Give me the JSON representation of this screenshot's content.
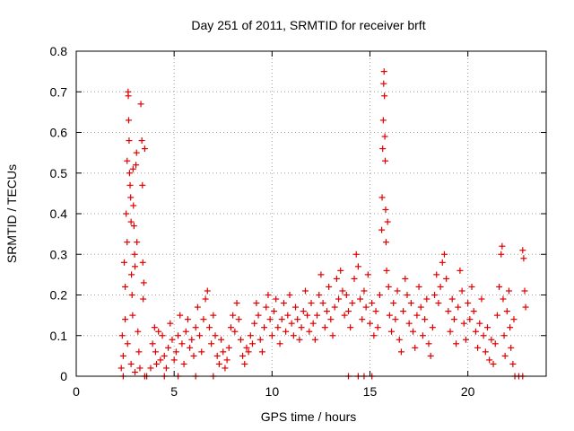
{
  "chart_data": {
    "type": "scatter",
    "title": "Day 251 of 2011, SRMTID for receiver brft",
    "xlabel": "GPS time / hours",
    "ylabel": "SRMTID / TECUs",
    "xlim": [
      0,
      24
    ],
    "ylim": [
      0,
      0.8
    ],
    "xticks": [
      0,
      5,
      10,
      15,
      20
    ],
    "xtick_labels": [
      "0",
      "5",
      "10",
      "15",
      "20"
    ],
    "yticks": [
      0,
      0.1,
      0.2,
      0.3,
      0.4,
      0.5,
      0.6,
      0.7,
      0.8
    ],
    "ytick_labels": [
      "0",
      "0.1",
      "0.2",
      "0.3",
      "0.4",
      "0.5",
      "0.6",
      "0.7",
      "0.8"
    ],
    "grid": true,
    "marker": "+",
    "color": "#e00000",
    "series": [
      {
        "name": "SRMTID",
        "points": [
          [
            2.3,
            0.02
          ],
          [
            2.35,
            0.1
          ],
          [
            2.4,
            0.05
          ],
          [
            2.45,
            0.28
          ],
          [
            2.5,
            0.22
          ],
          [
            2.5,
            0.14
          ],
          [
            2.55,
            0.4
          ],
          [
            2.6,
            0.53
          ],
          [
            2.6,
            0.33
          ],
          [
            2.62,
            0.08
          ],
          [
            2.65,
            0.7
          ],
          [
            2.66,
            0.69
          ],
          [
            2.68,
            0.63
          ],
          [
            2.7,
            0.58
          ],
          [
            2.72,
            0.5
          ],
          [
            2.75,
            0.47
          ],
          [
            2.78,
            0.44
          ],
          [
            2.8,
            0.38
          ],
          [
            2.82,
            0.25
          ],
          [
            2.85,
            0.2
          ],
          [
            2.88,
            0.15
          ],
          [
            2.9,
            0.51
          ],
          [
            2.92,
            0.42
          ],
          [
            2.95,
            0.37
          ],
          [
            2.98,
            0.3
          ],
          [
            3.0,
            0.27
          ],
          [
            3.05,
            0.52
          ],
          [
            3.08,
            0.55
          ],
          [
            3.1,
            0.33
          ],
          [
            3.15,
            0.11
          ],
          [
            3.2,
            0.06
          ],
          [
            3.25,
            0.02
          ],
          [
            3.3,
            0.67
          ],
          [
            3.35,
            0.58
          ],
          [
            3.38,
            0.47
          ],
          [
            3.4,
            0.28
          ],
          [
            3.42,
            0.19
          ],
          [
            3.45,
            0.23
          ],
          [
            3.5,
            0.56
          ],
          [
            2.4,
            0.0
          ],
          [
            2.8,
            0.03
          ],
          [
            3.0,
            0.01
          ],
          [
            3.6,
            0.0
          ],
          [
            3.5,
            0.0
          ],
          [
            3.8,
            0.02
          ],
          [
            3.9,
            0.08
          ],
          [
            4.0,
            0.12
          ],
          [
            4.05,
            0.06
          ],
          [
            4.1,
            0.03
          ],
          [
            4.2,
            0.11
          ],
          [
            4.3,
            0.04
          ],
          [
            4.4,
            0.1
          ],
          [
            4.5,
            0.05
          ],
          [
            4.6,
            0.02
          ],
          [
            4.7,
            0.07
          ],
          [
            4.8,
            0.13
          ],
          [
            4.9,
            0.09
          ],
          [
            5.0,
            0.04
          ],
          [
            5.1,
            0.06
          ],
          [
            5.2,
            0.1
          ],
          [
            5.3,
            0.15
          ],
          [
            5.4,
            0.08
          ],
          [
            5.5,
            0.03
          ],
          [
            5.6,
            0.11
          ],
          [
            5.7,
            0.14
          ],
          [
            5.8,
            0.07
          ],
          [
            5.9,
            0.09
          ],
          [
            6.0,
            0.05
          ],
          [
            6.1,
            0.12
          ],
          [
            6.2,
            0.17
          ],
          [
            6.3,
            0.1
          ],
          [
            6.4,
            0.06
          ],
          [
            6.5,
            0.14
          ],
          [
            6.6,
            0.19
          ],
          [
            6.7,
            0.21
          ],
          [
            6.8,
            0.12
          ],
          [
            6.9,
            0.08
          ],
          [
            7.0,
            0.15
          ],
          [
            7.1,
            0.1
          ],
          [
            7.2,
            0.05
          ],
          [
            7.3,
            0.03
          ],
          [
            7.4,
            0.09
          ],
          [
            7.5,
            0.06
          ],
          [
            7.6,
            0.02
          ],
          [
            7.7,
            0.04
          ],
          [
            7.8,
            0.07
          ],
          [
            7.9,
            0.12
          ],
          [
            8.0,
            0.15
          ],
          [
            8.1,
            0.11
          ],
          [
            8.2,
            0.18
          ],
          [
            8.3,
            0.14
          ],
          [
            8.4,
            0.09
          ],
          [
            8.5,
            0.05
          ],
          [
            8.6,
            0.03
          ],
          [
            8.7,
            0.07
          ],
          [
            8.8,
            0.06
          ],
          [
            8.9,
            0.1
          ],
          [
            9.0,
            0.08
          ],
          [
            9.1,
            0.13
          ],
          [
            9.2,
            0.18
          ],
          [
            9.3,
            0.15
          ],
          [
            9.4,
            0.09
          ],
          [
            9.5,
            0.06
          ],
          [
            9.6,
            0.12
          ],
          [
            9.7,
            0.17
          ],
          [
            9.8,
            0.2
          ],
          [
            9.9,
            0.14
          ],
          [
            10.0,
            0.1
          ],
          [
            10.1,
            0.16
          ],
          [
            10.2,
            0.19
          ],
          [
            10.3,
            0.12
          ],
          [
            10.4,
            0.08
          ],
          [
            10.5,
            0.14
          ],
          [
            10.6,
            0.18
          ],
          [
            10.7,
            0.11
          ],
          [
            10.8,
            0.15
          ],
          [
            10.9,
            0.2
          ],
          [
            11.0,
            0.13
          ],
          [
            11.1,
            0.1
          ],
          [
            11.2,
            0.17
          ],
          [
            11.3,
            0.14
          ],
          [
            11.4,
            0.09
          ],
          [
            11.5,
            0.12
          ],
          [
            11.6,
            0.16
          ],
          [
            11.7,
            0.21
          ],
          [
            11.8,
            0.15
          ],
          [
            11.9,
            0.11
          ],
          [
            12.0,
            0.18
          ],
          [
            12.1,
            0.13
          ],
          [
            12.2,
            0.09
          ],
          [
            12.3,
            0.15
          ],
          [
            12.4,
            0.2
          ],
          [
            12.5,
            0.25
          ],
          [
            12.6,
            0.18
          ],
          [
            12.7,
            0.12
          ],
          [
            12.8,
            0.16
          ],
          [
            12.9,
            0.22
          ],
          [
            13.0,
            0.14
          ],
          [
            13.1,
            0.1
          ],
          [
            13.2,
            0.17
          ],
          [
            13.3,
            0.24
          ],
          [
            13.4,
            0.19
          ],
          [
            13.5,
            0.26
          ],
          [
            13.6,
            0.21
          ],
          [
            13.7,
            0.15
          ],
          [
            13.8,
            0.2
          ],
          [
            13.9,
            0.16
          ],
          [
            14.0,
            0.12
          ],
          [
            14.1,
            0.18
          ],
          [
            14.2,
            0.24
          ],
          [
            14.3,
            0.3
          ],
          [
            14.4,
            0.27
          ],
          [
            14.5,
            0.19
          ],
          [
            14.6,
            0.14
          ],
          [
            14.7,
            0.21
          ],
          [
            14.8,
            0.17
          ],
          [
            14.9,
            0.25
          ],
          [
            15.0,
            0.13
          ],
          [
            15.1,
            0.18
          ],
          [
            15.2,
            0.1
          ],
          [
            15.3,
            0.16
          ],
          [
            15.4,
            0.12
          ],
          [
            15.5,
            0.2
          ],
          [
            15.6,
            0.36
          ],
          [
            15.62,
            0.44
          ],
          [
            15.65,
            0.56
          ],
          [
            15.68,
            0.63
          ],
          [
            15.7,
            0.72
          ],
          [
            15.72,
            0.75
          ],
          [
            15.74,
            0.69
          ],
          [
            15.76,
            0.59
          ],
          [
            15.78,
            0.53
          ],
          [
            15.8,
            0.41
          ],
          [
            15.82,
            0.33
          ],
          [
            15.85,
            0.26
          ],
          [
            15.9,
            0.38
          ],
          [
            15.95,
            0.22
          ],
          [
            16.0,
            0.15
          ],
          [
            16.1,
            0.11
          ],
          [
            16.2,
            0.18
          ],
          [
            16.3,
            0.14
          ],
          [
            16.4,
            0.21
          ],
          [
            16.5,
            0.09
          ],
          [
            16.6,
            0.06
          ],
          [
            16.7,
            0.16
          ],
          [
            16.8,
            0.24
          ],
          [
            16.9,
            0.2
          ],
          [
            17.0,
            0.13
          ],
          [
            17.1,
            0.18
          ],
          [
            17.2,
            0.11
          ],
          [
            17.3,
            0.07
          ],
          [
            17.4,
            0.15
          ],
          [
            17.5,
            0.22
          ],
          [
            17.6,
            0.17
          ],
          [
            17.7,
            0.1
          ],
          [
            17.8,
            0.14
          ],
          [
            17.9,
            0.19
          ],
          [
            18.0,
            0.08
          ],
          [
            18.1,
            0.05
          ],
          [
            18.2,
            0.12
          ],
          [
            18.3,
            0.2
          ],
          [
            18.4,
            0.25
          ],
          [
            18.5,
            0.18
          ],
          [
            18.6,
            0.22
          ],
          [
            18.7,
            0.28
          ],
          [
            18.8,
            0.3
          ],
          [
            18.9,
            0.24
          ],
          [
            19.0,
            0.16
          ],
          [
            19.1,
            0.11
          ],
          [
            19.2,
            0.19
          ],
          [
            19.3,
            0.14
          ],
          [
            19.4,
            0.08
          ],
          [
            19.5,
            0.17
          ],
          [
            19.6,
            0.26
          ],
          [
            19.7,
            0.21
          ],
          [
            19.8,
            0.13
          ],
          [
            19.9,
            0.09
          ],
          [
            20.0,
            0.18
          ],
          [
            20.1,
            0.14
          ],
          [
            20.2,
            0.22
          ],
          [
            20.3,
            0.16
          ],
          [
            20.4,
            0.11
          ],
          [
            20.5,
            0.07
          ],
          [
            20.6,
            0.13
          ],
          [
            20.7,
            0.19
          ],
          [
            20.8,
            0.1
          ],
          [
            20.9,
            0.06
          ],
          [
            21.0,
            0.12
          ],
          [
            21.1,
            0.04
          ],
          [
            21.2,
            0.09
          ],
          [
            21.3,
            0.03
          ],
          [
            21.4,
            0.08
          ],
          [
            21.5,
            0.15
          ],
          [
            21.6,
            0.22
          ],
          [
            21.7,
            0.3
          ],
          [
            21.75,
            0.32
          ],
          [
            21.8,
            0.19
          ],
          [
            21.85,
            0.1
          ],
          [
            21.9,
            0.05
          ],
          [
            22.0,
            0.16
          ],
          [
            22.1,
            0.21
          ],
          [
            22.15,
            0.12
          ],
          [
            22.2,
            0.07
          ],
          [
            22.3,
            0.03
          ],
          [
            22.35,
            0.14
          ],
          [
            22.8,
            0.31
          ],
          [
            22.85,
            0.29
          ],
          [
            22.9,
            0.21
          ],
          [
            22.95,
            0.17
          ],
          [
            22.4,
            0.0
          ],
          [
            22.6,
            0.0
          ],
          [
            22.8,
            0.0
          ],
          [
            13.9,
            0.0
          ],
          [
            14.4,
            0.0
          ],
          [
            14.7,
            0.0
          ],
          [
            15.1,
            0.0
          ],
          [
            4.5,
            0.0
          ],
          [
            5.2,
            0.0
          ],
          [
            6.1,
            0.0
          ],
          [
            7.0,
            0.0
          ]
        ]
      }
    ]
  }
}
